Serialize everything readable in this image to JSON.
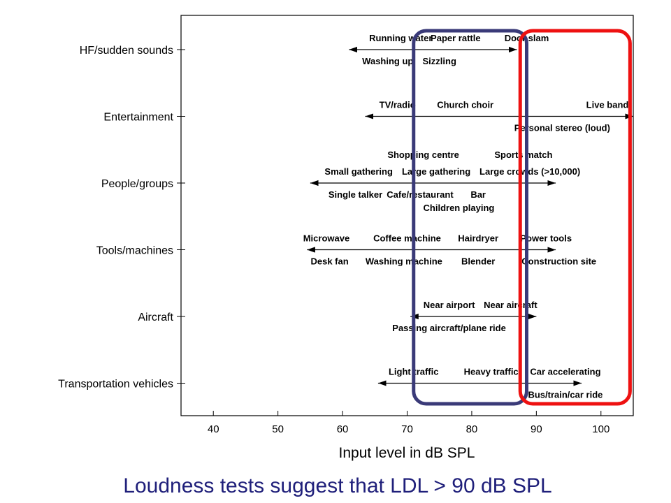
{
  "chart_data": {
    "type": "range",
    "title": "",
    "xlabel": "Input level in dB SPL",
    "xlim": [
      35,
      105
    ],
    "xticks": [
      40,
      50,
      60,
      70,
      80,
      90,
      100
    ],
    "categories": [
      "HF/sudden sounds",
      "Entertainment",
      "People/groups",
      "Tools/machines",
      "Aircraft",
      "Transportation vehicles"
    ],
    "ranges": [
      {
        "category": "HF/sudden sounds",
        "min": 61,
        "max": 87,
        "above": [
          {
            "text": "Running water",
            "x": 69
          },
          {
            "text": "Paper rattle",
            "x": 77.5
          },
          {
            "text": "Door slam",
            "x": 88.5
          }
        ],
        "below": [
          {
            "text": "Washing up",
            "x": 67
          },
          {
            "text": "Sizzling",
            "x": 75
          }
        ]
      },
      {
        "category": "Entertainment",
        "min": 63.5,
        "max": 105,
        "above": [
          {
            "text": "TV/radio",
            "x": 68.5
          },
          {
            "text": "Church choir",
            "x": 79
          },
          {
            "text": "Live band",
            "x": 101
          }
        ],
        "below": [
          {
            "text": "Personal stereo (loud)",
            "x": 94
          }
        ]
      },
      {
        "category": "People/groups",
        "min": 55,
        "max": 93,
        "above": [
          {
            "text": "Small gathering",
            "x": 62.5
          },
          {
            "text": "Large gathering",
            "x": 74.5
          },
          {
            "text": "Large crowds (>10,000)",
            "x": 89
          }
        ],
        "above2": [
          {
            "text": "Shopping centre",
            "x": 72.5
          },
          {
            "text": "Sports match",
            "x": 88
          }
        ],
        "below": [
          {
            "text": "Single talker",
            "x": 62
          },
          {
            "text": "Cafe/restaurant",
            "x": 72
          },
          {
            "text": "Bar",
            "x": 81
          }
        ],
        "below2": [
          {
            "text": "Children playing",
            "x": 78
          }
        ]
      },
      {
        "category": "Tools/machines",
        "min": 54.5,
        "max": 93,
        "above": [
          {
            "text": "Microwave",
            "x": 57.5
          },
          {
            "text": "Coffee machine",
            "x": 70
          },
          {
            "text": "Hairdryer",
            "x": 81
          },
          {
            "text": "Power tools",
            "x": 91.5
          }
        ],
        "below": [
          {
            "text": "Desk fan",
            "x": 58
          },
          {
            "text": "Washing machine",
            "x": 69.5
          },
          {
            "text": "Blender",
            "x": 81
          },
          {
            "text": "Construction site",
            "x": 93.5
          }
        ]
      },
      {
        "category": "Aircraft",
        "min": 70.5,
        "max": 90,
        "above": [
          {
            "text": "Near airport",
            "x": 76.5
          },
          {
            "text": "Near aircraft",
            "x": 86
          }
        ],
        "below": [
          {
            "text": "Passing aircraft/plane ride",
            "x": 76.5
          }
        ]
      },
      {
        "category": "Transportation vehicles",
        "min": 65.5,
        "max": 97,
        "above": [
          {
            "text": "Light traffic",
            "x": 71
          },
          {
            "text": "Heavy traffic",
            "x": 83
          },
          {
            "text": "Car accelerating",
            "x": 94.5
          }
        ],
        "below": [
          {
            "text": "Bus/train/car ride",
            "x": 94.5
          }
        ]
      }
    ],
    "highlights": [
      {
        "color": "#3a3a78",
        "x_from": 71,
        "x_to": 88.5
      },
      {
        "color": "#ee1111",
        "x_from": 87.5,
        "x_to": 104.5
      }
    ],
    "grid": false,
    "legend": "none"
  },
  "caption": "Loudness tests suggest that LDL > 90 dB SPL",
  "colors": {
    "caption": "#1f1f7a"
  }
}
